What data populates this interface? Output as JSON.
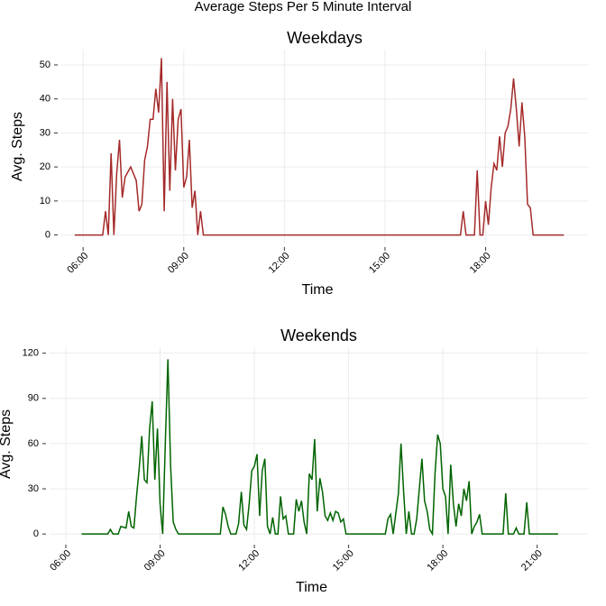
{
  "title": "Average Steps Per 5 Minute Interval",
  "chart_data": [
    {
      "type": "line",
      "title": "Weekdays",
      "xlabel": "Time",
      "ylabel": "Avg. Steps",
      "color": "#a52a2a",
      "grid": true,
      "x": [
        345,
        395,
        400,
        405,
        410,
        415,
        420,
        425,
        430,
        435,
        445,
        455,
        460,
        465,
        470,
        475,
        480,
        485,
        490,
        495,
        500,
        505,
        510,
        515,
        520,
        525,
        530,
        535,
        540,
        545,
        550,
        555,
        560,
        565,
        570,
        575,
        1035,
        1040,
        1045,
        1060,
        1065,
        1070,
        1075,
        1080,
        1085,
        1090,
        1095,
        1100,
        1105,
        1110,
        1115,
        1120,
        1125,
        1130,
        1135,
        1140,
        1145,
        1150,
        1155,
        1160,
        1165,
        1220
      ],
      "values": [
        0,
        0,
        7,
        0,
        24,
        0,
        18,
        28,
        11,
        17,
        20,
        16,
        7,
        9,
        22,
        26,
        34,
        34,
        43,
        36,
        52,
        7,
        45,
        13,
        40,
        19,
        34,
        37,
        14,
        17,
        28,
        8,
        13,
        0,
        7,
        0,
        0,
        7,
        0,
        0,
        19,
        0,
        0,
        10,
        3,
        14,
        21,
        19,
        29,
        20,
        30,
        32,
        37,
        46,
        37,
        26,
        39,
        29,
        9,
        8,
        0,
        0
      ],
      "xlim": [
        321,
        1263
      ],
      "ylim": [
        -2.5,
        54.5
      ],
      "xticks": [
        {
          "value": 360,
          "label": "06:00"
        },
        {
          "value": 540,
          "label": "09:00"
        },
        {
          "value": 720,
          "label": "12:00"
        },
        {
          "value": 900,
          "label": "15:00"
        },
        {
          "value": 1080,
          "label": "18:00"
        }
      ],
      "yticks": [
        0,
        10,
        20,
        30,
        40,
        50
      ]
    },
    {
      "type": "line",
      "title": "Weekends",
      "xlabel": "Time",
      "ylabel": "Avg. Steps",
      "color": "#006400",
      "grid": true,
      "x": [
        390,
        440,
        445,
        450,
        460,
        465,
        475,
        480,
        485,
        490,
        495,
        500,
        505,
        510,
        515,
        520,
        525,
        530,
        535,
        540,
        545,
        550,
        555,
        560,
        565,
        570,
        575,
        655,
        660,
        665,
        670,
        675,
        685,
        690,
        695,
        700,
        705,
        710,
        715,
        720,
        725,
        730,
        735,
        740,
        745,
        750,
        755,
        760,
        765,
        770,
        775,
        780,
        785,
        795,
        800,
        805,
        810,
        815,
        820,
        825,
        830,
        835,
        840,
        845,
        850,
        855,
        860,
        865,
        870,
        875,
        880,
        885,
        890,
        895,
        970,
        975,
        980,
        985,
        995,
        1000,
        1005,
        1010,
        1015,
        1020,
        1025,
        1030,
        1035,
        1040,
        1045,
        1050,
        1055,
        1060,
        1065,
        1070,
        1075,
        1080,
        1085,
        1090,
        1095,
        1100,
        1105,
        1110,
        1115,
        1120,
        1125,
        1130,
        1135,
        1140,
        1145,
        1150,
        1155,
        1195,
        1200,
        1205,
        1215,
        1220,
        1225,
        1235,
        1240,
        1245,
        1300
      ],
      "values": [
        0,
        0,
        3,
        0,
        0,
        5,
        4,
        15,
        5,
        4,
        25,
        43,
        65,
        36,
        34,
        70,
        88,
        36,
        70,
        20,
        0,
        60,
        116,
        45,
        8,
        3,
        0,
        0,
        18,
        13,
        5,
        0,
        0,
        7,
        28,
        6,
        3,
        20,
        42,
        45,
        53,
        12,
        42,
        50,
        5,
        0,
        11,
        0,
        0,
        25,
        10,
        12,
        0,
        0,
        23,
        15,
        22,
        8,
        0,
        40,
        36,
        63,
        15,
        37,
        28,
        12,
        9,
        14,
        9,
        15,
        14,
        8,
        10,
        0,
        0,
        10,
        13,
        0,
        27,
        60,
        28,
        0,
        15,
        0,
        0,
        10,
        30,
        50,
        22,
        15,
        3,
        0,
        40,
        66,
        60,
        30,
        25,
        0,
        46,
        20,
        5,
        20,
        12,
        30,
        22,
        35,
        0,
        5,
        8,
        13,
        0,
        0,
        27,
        0,
        0,
        4,
        0,
        0,
        21,
        0,
        0
      ],
      "xlim": [
        329,
        1357
      ],
      "ylim": [
        -4.7,
        124
      ],
      "xticks": [
        {
          "value": 360,
          "label": "06:00"
        },
        {
          "value": 540,
          "label": "09:00"
        },
        {
          "value": 720,
          "label": "12:00"
        },
        {
          "value": 900,
          "label": "15:00"
        },
        {
          "value": 1080,
          "label": "18:00"
        },
        {
          "value": 1260,
          "label": "21:00"
        }
      ],
      "yticks": [
        0,
        30,
        60,
        90,
        120
      ]
    }
  ]
}
